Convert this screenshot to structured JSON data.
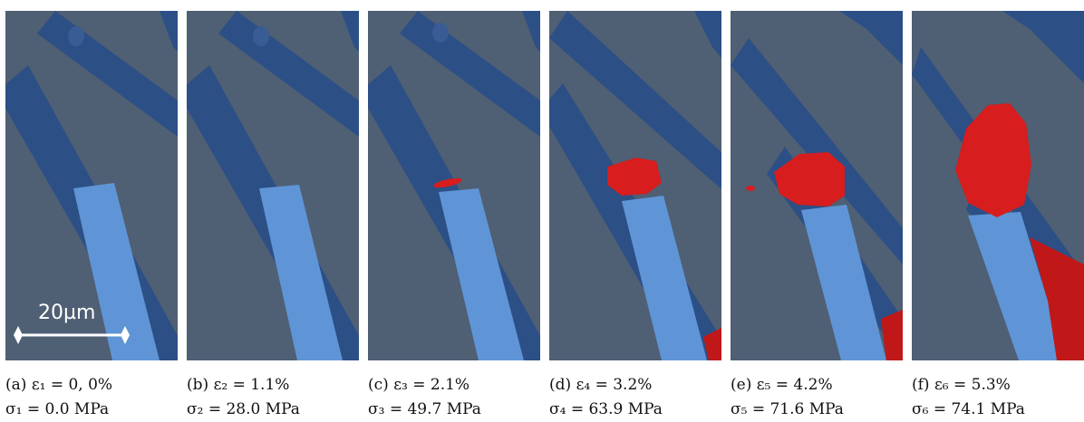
{
  "figure": {
    "panels": [
      {
        "tag": "(a)",
        "strain_label": "ε₁ = 0, 0%",
        "stress_label": "σ₁ = 0.0 MPa",
        "strain_pct": 0.0,
        "stress_mpa": 0.0,
        "damage": "none"
      },
      {
        "tag": "(b)",
        "strain_label": "ε₂ = 1.1%",
        "stress_label": "σ₂ = 28.0 MPa",
        "strain_pct": 1.1,
        "stress_mpa": 28.0,
        "damage": "none"
      },
      {
        "tag": "(c)",
        "strain_label": "ε₃ = 2.1%",
        "stress_label": "σ₃ = 49.7 MPa",
        "strain_pct": 2.1,
        "stress_mpa": 49.7,
        "damage": "sliver"
      },
      {
        "tag": "(d)",
        "strain_label": "ε₄ = 3.2%",
        "stress_label": "σ₄ = 63.9 MPa",
        "strain_pct": 3.2,
        "stress_mpa": 63.9,
        "damage": "small"
      },
      {
        "tag": "(e)",
        "strain_label": "ε₅ = 4.2%",
        "stress_label": "σ₅ = 71.6 MPa",
        "strain_pct": 4.2,
        "stress_mpa": 71.6,
        "damage": "medium"
      },
      {
        "tag": "(f)",
        "strain_label": "ε₆ = 5.3%",
        "stress_label": "σ₆ = 74.1 MPa",
        "strain_pct": 5.3,
        "stress_mpa": 74.1,
        "damage": "large"
      }
    ],
    "scale_bar": {
      "label": "20µm"
    },
    "colors": {
      "matrix_bg": "#4f5f74",
      "fiber_dark": "#2c4f86",
      "fiber_light": "#5f95d6",
      "damage_red": "#d71d1d"
    }
  }
}
